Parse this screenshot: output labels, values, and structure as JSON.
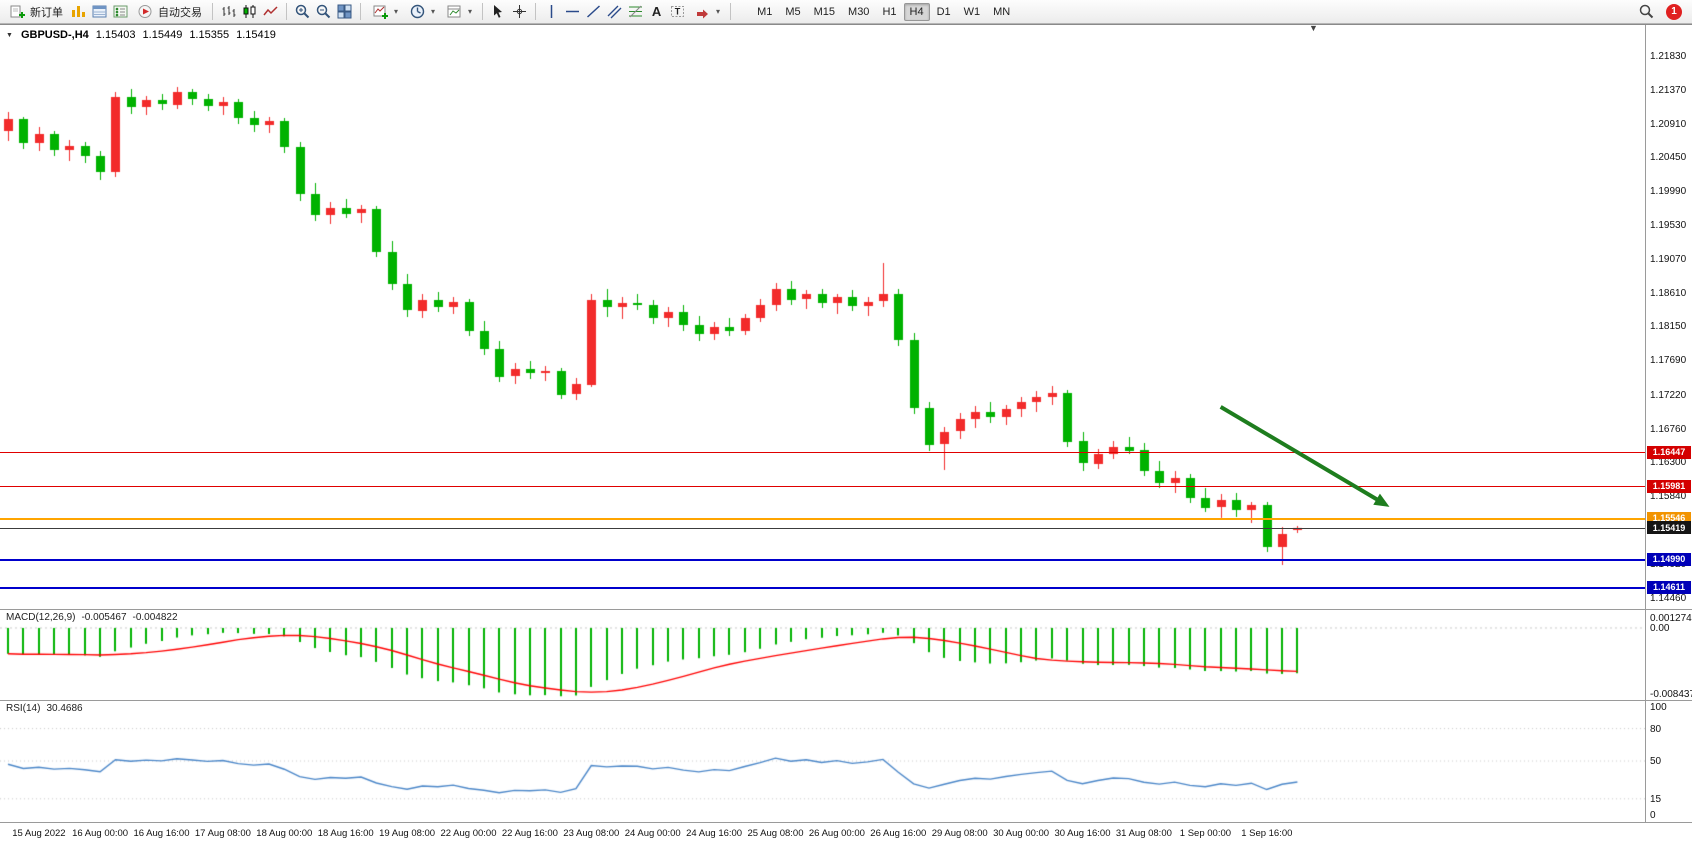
{
  "toolbar": {
    "new_order_label": "新订单",
    "auto_trading_label": "自动交易",
    "timeframes": [
      "M1",
      "M5",
      "M15",
      "M30",
      "H1",
      "H4",
      "D1",
      "W1",
      "MN"
    ],
    "active_timeframe": "H4",
    "notification_count": "1"
  },
  "chart": {
    "title": {
      "symbol_period": "GBPUSD-,H4",
      "open": "1.15403",
      "high": "1.15449",
      "low": "1.15355",
      "close": "1.15419"
    },
    "price_axis_labels": [
      "1.21830",
      "1.21370",
      "1.20910",
      "1.20450",
      "1.19990",
      "1.19530",
      "1.19070",
      "1.18610",
      "1.18150",
      "1.17690",
      "1.17220",
      "1.16760",
      "1.16300",
      "1.15840",
      "1.14920",
      "1.14460"
    ],
    "levels": [
      {
        "name": "resistance-line-1",
        "price": 1.16447,
        "label": "1.16447",
        "line_color": "#e00000",
        "line_width": 1,
        "tag_color": "#d40000"
      },
      {
        "name": "resistance-line-2",
        "price": 1.15981,
        "label": "1.15981",
        "line_color": "#e00000",
        "line_width": 1,
        "tag_color": "#d40000"
      },
      {
        "name": "support-line-orange",
        "price": 1.15546,
        "label": "1.15546",
        "line_color": "#ffa500",
        "line_width": 2,
        "tag_color": "#f29400"
      },
      {
        "name": "bid-price-line",
        "price": 1.15419,
        "label": "1.15419",
        "line_color": "#3c3c3c",
        "line_width": 1,
        "tag_color": "#151515"
      },
      {
        "name": "support-line-blue-1",
        "price": 1.1499,
        "label": "1.14990",
        "line_color": "#0000cc",
        "line_width": 2,
        "tag_color": "#0000b8"
      },
      {
        "name": "support-line-blue-2",
        "price": 1.14611,
        "label": "1.14611",
        "line_color": "#0000cc",
        "line_width": 2,
        "tag_color": "#0000b8"
      }
    ]
  },
  "macd_panel": {
    "name": "MACD(12,26,9)",
    "main_value": "-0.005467",
    "signal_value": "-0.004822",
    "axis_labels": [
      "0.001274",
      "0.00",
      "-0.008437"
    ],
    "scale_max": 0.001274,
    "scale_min": -0.008437
  },
  "rsi_panel": {
    "name": "RSI(14)",
    "value": "30.4686",
    "axis_labels": [
      "100",
      "80",
      "50",
      "15",
      "0"
    ],
    "level_lines": [
      80,
      50,
      15
    ]
  },
  "chart_data": {
    "type": "candlestick",
    "symbol": "GBPUSD-",
    "timeframe": "H4",
    "up_color": "#f22b2b",
    "down_color": "#00b200",
    "price_range": [
      1.1425,
      1.222
    ],
    "ohlc": [
      [
        1.2082,
        1.2108,
        1.2068,
        1.2098
      ],
      [
        1.2098,
        1.2102,
        1.2058,
        1.2066
      ],
      [
        1.2066,
        1.2088,
        1.2056,
        1.2078
      ],
      [
        1.2078,
        1.2082,
        1.2048,
        1.2056
      ],
      [
        1.2056,
        1.207,
        1.2042,
        1.2062
      ],
      [
        1.2062,
        1.2068,
        1.204,
        1.2048
      ],
      [
        1.2048,
        1.2055,
        1.2015,
        1.2026
      ],
      [
        1.2026,
        1.2135,
        1.202,
        1.2128
      ],
      [
        1.2128,
        1.214,
        1.2106,
        1.2114
      ],
      [
        1.2114,
        1.213,
        1.2104,
        1.2124
      ],
      [
        1.2124,
        1.2132,
        1.211,
        1.2118
      ],
      [
        1.2118,
        1.2142,
        1.2112,
        1.2136
      ],
      [
        1.2136,
        1.214,
        1.2118,
        1.2126
      ],
      [
        1.2126,
        1.2133,
        1.211,
        1.2116
      ],
      [
        1.2116,
        1.2128,
        1.2104,
        1.2122
      ],
      [
        1.2122,
        1.2126,
        1.2092,
        1.21
      ],
      [
        1.21,
        1.211,
        1.2082,
        1.209
      ],
      [
        1.209,
        1.2102,
        1.208,
        1.2096
      ],
      [
        1.2096,
        1.21,
        1.2052,
        1.206
      ],
      [
        1.206,
        1.2068,
        1.1988,
        1.1996
      ],
      [
        1.1996,
        1.2012,
        1.196,
        1.1968
      ],
      [
        1.1968,
        1.1986,
        1.1956,
        1.1978
      ],
      [
        1.1978,
        1.199,
        1.1964,
        1.197
      ],
      [
        1.197,
        1.1982,
        1.1958,
        1.1976
      ],
      [
        1.1976,
        1.198,
        1.191,
        1.1918
      ],
      [
        1.1918,
        1.1932,
        1.1866,
        1.1874
      ],
      [
        1.1874,
        1.1888,
        1.183,
        1.1838
      ],
      [
        1.1838,
        1.186,
        1.1828,
        1.1853
      ],
      [
        1.1853,
        1.1863,
        1.1836,
        1.1843
      ],
      [
        1.1843,
        1.1856,
        1.1833,
        1.185
      ],
      [
        1.185,
        1.1854,
        1.1803,
        1.181
      ],
      [
        1.181,
        1.1824,
        1.1778,
        1.1786
      ],
      [
        1.1786,
        1.1796,
        1.174,
        1.1748
      ],
      [
        1.1748,
        1.1766,
        1.1738,
        1.1758
      ],
      [
        1.1758,
        1.177,
        1.1746,
        1.1753
      ],
      [
        1.1753,
        1.1763,
        1.1743,
        1.1756
      ],
      [
        1.1756,
        1.176,
        1.1718,
        1.1724
      ],
      [
        1.1724,
        1.1746,
        1.1716,
        1.1738
      ],
      [
        1.1738,
        1.186,
        1.1733,
        1.1853
      ],
      [
        1.1853,
        1.1868,
        1.183,
        1.1843
      ],
      [
        1.1843,
        1.1856,
        1.1826,
        1.1848
      ],
      [
        1.1848,
        1.186,
        1.1838,
        1.1846
      ],
      [
        1.1846,
        1.1853,
        1.182,
        1.1828
      ],
      [
        1.1828,
        1.1843,
        1.1816,
        1.1836
      ],
      [
        1.1836,
        1.1846,
        1.181,
        1.1818
      ],
      [
        1.1818,
        1.183,
        1.1796,
        1.1806
      ],
      [
        1.1806,
        1.1823,
        1.1798,
        1.1816
      ],
      [
        1.1816,
        1.1828,
        1.1803,
        1.181
      ],
      [
        1.181,
        1.1834,
        1.1806,
        1.1828
      ],
      [
        1.1828,
        1.1854,
        1.1823,
        1.1846
      ],
      [
        1.1846,
        1.1876,
        1.1838,
        1.1868
      ],
      [
        1.1868,
        1.1878,
        1.1846,
        1.1853
      ],
      [
        1.1853,
        1.1866,
        1.184,
        1.186
      ],
      [
        1.186,
        1.1868,
        1.1842,
        1.1848
      ],
      [
        1.1848,
        1.186,
        1.1833,
        1.1856
      ],
      [
        1.1856,
        1.1866,
        1.1838,
        1.1844
      ],
      [
        1.1844,
        1.1856,
        1.183,
        1.185
      ],
      [
        1.185,
        1.1903,
        1.1843,
        1.186
      ],
      [
        1.186,
        1.1868,
        1.179,
        1.1798
      ],
      [
        1.1798,
        1.1808,
        1.1698,
        1.1706
      ],
      [
        1.1706,
        1.1713,
        1.1646,
        1.1656
      ],
      [
        1.1656,
        1.168,
        1.1622,
        1.1673
      ],
      [
        1.1673,
        1.1698,
        1.1663,
        1.169
      ],
      [
        1.169,
        1.1708,
        1.1678,
        1.17
      ],
      [
        1.17,
        1.1714,
        1.1686,
        1.1693
      ],
      [
        1.1693,
        1.171,
        1.1683,
        1.1704
      ],
      [
        1.1704,
        1.172,
        1.1693,
        1.1713
      ],
      [
        1.1713,
        1.1728,
        1.17,
        1.172
      ],
      [
        1.172,
        1.1736,
        1.171,
        1.1726
      ],
      [
        1.1726,
        1.173,
        1.1653,
        1.166
      ],
      [
        1.166,
        1.1673,
        1.162,
        1.163
      ],
      [
        1.163,
        1.165,
        1.1623,
        1.1643
      ],
      [
        1.1643,
        1.166,
        1.1636,
        1.1653
      ],
      [
        1.1653,
        1.1666,
        1.1643,
        1.1648
      ],
      [
        1.1648,
        1.1658,
        1.1613,
        1.162
      ],
      [
        1.162,
        1.1633,
        1.1596,
        1.1603
      ],
      [
        1.1603,
        1.162,
        1.159,
        1.161
      ],
      [
        1.161,
        1.1616,
        1.1576,
        1.1583
      ],
      [
        1.1583,
        1.1596,
        1.1563,
        1.157
      ],
      [
        1.157,
        1.1588,
        1.1556,
        1.158
      ],
      [
        1.158,
        1.159,
        1.1558,
        1.1566
      ],
      [
        1.1566,
        1.1578,
        1.155,
        1.1573
      ],
      [
        1.1573,
        1.1578,
        1.151,
        1.1516
      ],
      [
        1.1516,
        1.1543,
        1.1491,
        1.1534
      ],
      [
        1.15403,
        1.15449,
        1.15355,
        1.15419
      ]
    ],
    "time_labels": [
      {
        "t": "15 Aug 2022",
        "bar": 2
      },
      {
        "t": "16 Aug 00:00",
        "bar": 6
      },
      {
        "t": "16 Aug 16:00",
        "bar": 10
      },
      {
        "t": "17 Aug 08:00",
        "bar": 14
      },
      {
        "t": "18 Aug 00:00",
        "bar": 18
      },
      {
        "t": "18 Aug 16:00",
        "bar": 22
      },
      {
        "t": "19 Aug 08:00",
        "bar": 26
      },
      {
        "t": "22 Aug 00:00",
        "bar": 30
      },
      {
        "t": "22 Aug 16:00",
        "bar": 34
      },
      {
        "t": "23 Aug 08:00",
        "bar": 38
      },
      {
        "t": "24 Aug 00:00",
        "bar": 42
      },
      {
        "t": "24 Aug 16:00",
        "bar": 46
      },
      {
        "t": "25 Aug 08:00",
        "bar": 50
      },
      {
        "t": "26 Aug 00:00",
        "bar": 54
      },
      {
        "t": "26 Aug 16:00",
        "bar": 58
      },
      {
        "t": "29 Aug 08:00",
        "bar": 62
      },
      {
        "t": "30 Aug 00:00",
        "bar": 66
      },
      {
        "t": "30 Aug 16:00",
        "bar": 70
      },
      {
        "t": "31 Aug 08:00",
        "bar": 74
      },
      {
        "t": "1 Sep 00:00",
        "bar": 78
      },
      {
        "t": "1 Sep 16:00",
        "bar": 82
      }
    ],
    "indicators": {
      "macd": {
        "histogram_color": "#00b200",
        "signal_color": "#ff0000"
      },
      "rsi": {
        "line_color": "#4a86c8"
      }
    },
    "annotations": {
      "trend_arrow": {
        "from_bar": 79,
        "from_price": 1.1707,
        "to_bar": 90,
        "to_price": 1.1571,
        "color": "#1e7d1e"
      }
    }
  }
}
